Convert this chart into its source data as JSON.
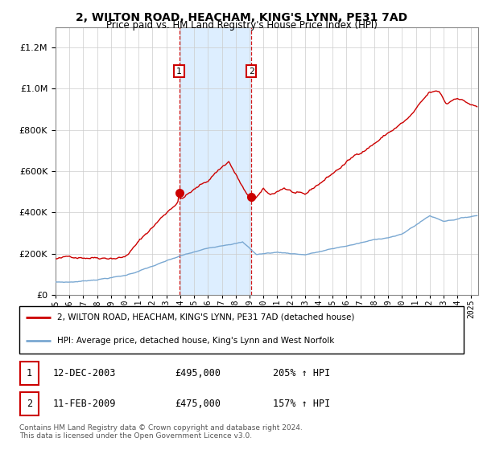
{
  "title1": "2, WILTON ROAD, HEACHAM, KING'S LYNN, PE31 7AD",
  "title2": "Price paid vs. HM Land Registry's House Price Index (HPI)",
  "legend_line1": "2, WILTON ROAD, HEACHAM, KING'S LYNN, PE31 7AD (detached house)",
  "legend_line2": "HPI: Average price, detached house, King's Lynn and West Norfolk",
  "table": [
    {
      "num": "1",
      "date": "12-DEC-2003",
      "price": "£495,000",
      "hpi": "205% ↑ HPI"
    },
    {
      "num": "2",
      "date": "11-FEB-2009",
      "price": "£475,000",
      "hpi": "157% ↑ HPI"
    }
  ],
  "footer": "Contains HM Land Registry data © Crown copyright and database right 2024.\nThis data is licensed under the Open Government Licence v3.0.",
  "sale1_year": 2003.92,
  "sale1_price": 495000,
  "sale2_year": 2009.12,
  "sale2_price": 475000,
  "red_color": "#cc0000",
  "blue_color": "#7aa8d2",
  "shade_color": "#ddeeff",
  "ylim_max": 1300000,
  "yticks": [
    0,
    200000,
    400000,
    600000,
    800000,
    1000000,
    1200000
  ],
  "xmin": 1995,
  "xmax": 2025.5
}
